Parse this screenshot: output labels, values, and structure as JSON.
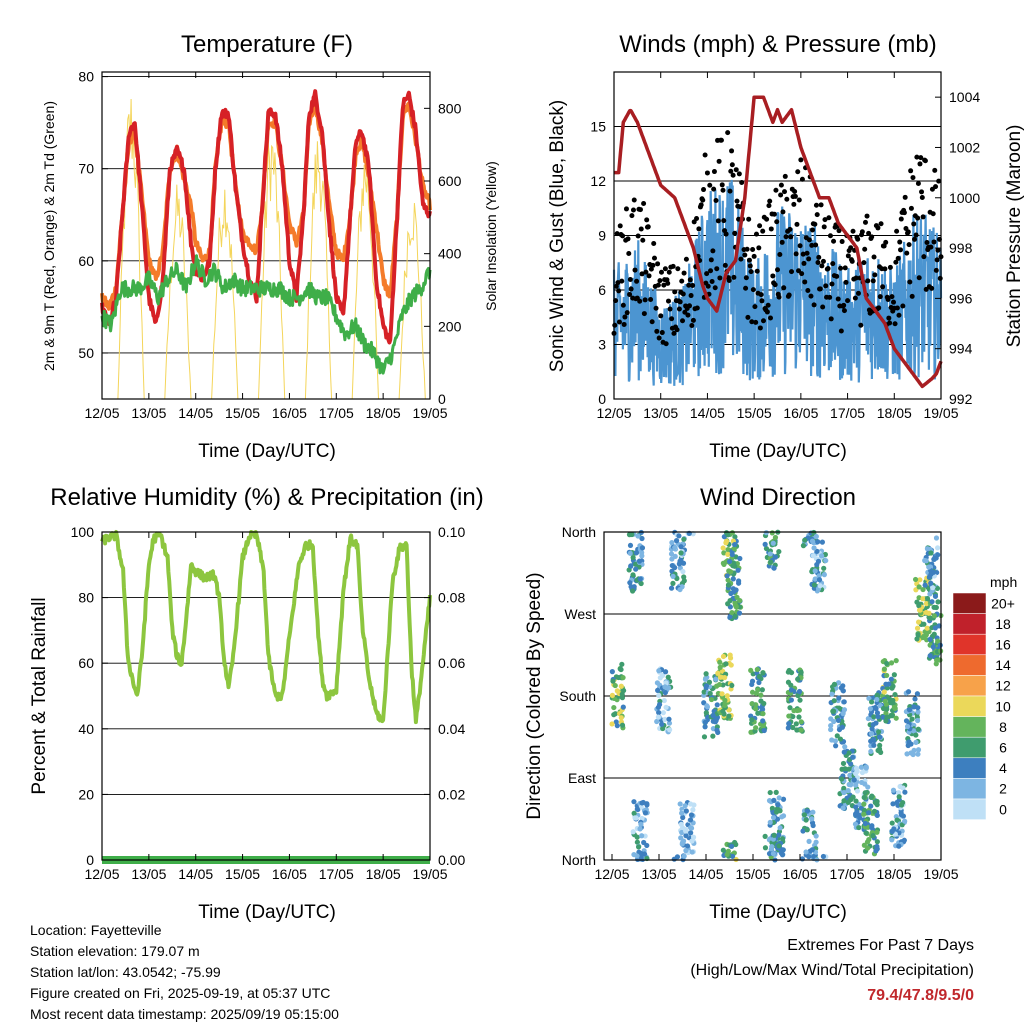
{
  "colors": {
    "red": "#d62126",
    "orange": "#f47b2a",
    "green": "#3fae49",
    "yellow": "#f4d55a",
    "blue": "#4c95d1",
    "black": "#000000",
    "maroon": "#a81e22",
    "rh_green": "#8dc63f"
  },
  "chart_data": [
    {
      "id": "temp",
      "type": "line",
      "title": "Temperature (F)",
      "xlabel": "Time (Day/UTC)",
      "ylabel": "2m & 9m T (Red, Orange) & 2m Td (Green)",
      "ylabel_right": "Solar Insolation (Yellow)",
      "x_ticks": [
        "12/05",
        "13/05",
        "14/05",
        "15/05",
        "16/05",
        "17/05",
        "18/05",
        "19/05"
      ],
      "ylim": [
        45,
        80.5
      ],
      "y_ticks": [
        50,
        60,
        70,
        80
      ],
      "ylim_right": [
        0,
        900
      ],
      "y_ticks_right": [
        0,
        200,
        400,
        600,
        800
      ],
      "grid": "horizontal",
      "series": [
        {
          "key": "t2m",
          "color": "red",
          "x": [
            0,
            0.15,
            0.3,
            0.45,
            0.58,
            0.7,
            0.85,
            1.0,
            1.15,
            1.3,
            1.45,
            1.6,
            1.75,
            1.9,
            2.0,
            2.15,
            2.3,
            2.42,
            2.55,
            2.7,
            2.85,
            3.0,
            3.15,
            3.3,
            3.42,
            3.55,
            3.7,
            3.85,
            4.0,
            4.15,
            4.3,
            4.42,
            4.55,
            4.7,
            4.85,
            5.0,
            5.15,
            5.3,
            5.42,
            5.55,
            5.7,
            5.85,
            6.0,
            6.15,
            6.3,
            6.42,
            6.55,
            6.7,
            6.85,
            7.0
          ],
          "values": [
            55,
            53,
            56,
            66,
            74,
            75,
            66,
            56,
            53,
            58,
            70,
            72,
            70,
            62,
            59,
            58,
            60,
            70,
            76,
            76,
            68,
            62,
            58,
            56,
            66,
            76,
            76,
            70,
            60,
            56,
            65,
            76,
            78,
            74,
            64,
            56,
            54,
            65,
            73,
            74,
            70,
            58,
            53,
            51,
            65,
            77,
            78,
            74,
            66,
            65
          ]
        },
        {
          "key": "t9m",
          "color": "orange",
          "x": [
            0,
            0.15,
            0.3,
            0.45,
            0.58,
            0.7,
            0.85,
            1.0,
            1.15,
            1.3,
            1.45,
            1.6,
            1.75,
            1.9,
            2.0,
            2.15,
            2.3,
            2.42,
            2.55,
            2.7,
            2.85,
            3.0,
            3.15,
            3.3,
            3.42,
            3.55,
            3.7,
            3.85,
            4.0,
            4.15,
            4.3,
            4.42,
            4.55,
            4.7,
            4.85,
            5.0,
            5.15,
            5.3,
            5.42,
            5.55,
            5.7,
            5.85,
            6.0,
            6.15,
            6.3,
            6.42,
            6.55,
            6.7,
            6.85,
            7.0
          ],
          "values": [
            56,
            55,
            57,
            66,
            73,
            74,
            67,
            60,
            58,
            61,
            70,
            72,
            69,
            66,
            62,
            60,
            61,
            70,
            75,
            75,
            68,
            63,
            62,
            61,
            66,
            75,
            75,
            70,
            64,
            62,
            65,
            75,
            77,
            73,
            66,
            61,
            60,
            65,
            72,
            73,
            69,
            64,
            58,
            56,
            65,
            76,
            77,
            73,
            68,
            66
          ]
        },
        {
          "key": "td",
          "color": "green",
          "x": [
            0,
            0.2,
            0.4,
            0.6,
            0.8,
            1.0,
            1.2,
            1.4,
            1.6,
            1.8,
            2.0,
            2.2,
            2.4,
            2.6,
            2.8,
            3.0,
            3.2,
            3.4,
            3.6,
            3.8,
            4.0,
            4.2,
            4.4,
            4.6,
            4.8,
            5.0,
            5.2,
            5.4,
            5.6,
            5.8,
            6.0,
            6.2,
            6.4,
            6.6,
            6.8,
            7.0
          ],
          "values": [
            54,
            53,
            57,
            57,
            57,
            58,
            56,
            58,
            59,
            57,
            60,
            58,
            59,
            57,
            58,
            57,
            57,
            57,
            57,
            57,
            56,
            56,
            57,
            56,
            56,
            54,
            52,
            53,
            51,
            50,
            48,
            50,
            54,
            56,
            57,
            59
          ]
        }
      ],
      "insolation": {
        "key": "solar",
        "color": "yellow",
        "day_peaks_x": [
          0.62,
          1.62,
          2.62,
          3.62,
          4.62,
          5.62,
          6.62
        ],
        "day_peaks": [
          880,
          600,
          640,
          780,
          760,
          720,
          600
        ]
      }
    },
    {
      "id": "wind",
      "type": "scatter",
      "title": "Winds (mph) & Pressure (mb)",
      "xlabel": "Time (Day/UTC)",
      "ylabel": "Sonic Wind & Gust (Blue, Black)",
      "ylabel_right": "Station Pressure (Maroon)",
      "x_ticks": [
        "12/05",
        "13/05",
        "14/05",
        "15/05",
        "16/05",
        "17/05",
        "18/05",
        "19/05"
      ],
      "ylim": [
        0,
        18
      ],
      "y_ticks": [
        0,
        3,
        6,
        9,
        12,
        15
      ],
      "ylim_right": [
        992,
        1005
      ],
      "y_ticks_right": [
        992,
        994,
        996,
        998,
        1000,
        1002,
        1004
      ],
      "grid": "horizontal",
      "wind_level_x": [
        0,
        0.5,
        1,
        1.5,
        2,
        2.5,
        3,
        3.5,
        4,
        4.5,
        5,
        5.5,
        6,
        6.5,
        7
      ],
      "wind_mean": [
        4,
        5,
        3,
        3.5,
        6.5,
        7,
        4,
        6,
        6,
        5,
        4,
        5,
        4,
        6,
        5
      ],
      "gust_mean": [
        6,
        8,
        5,
        5,
        9.5,
        10,
        6,
        8,
        9,
        7,
        6,
        7,
        6,
        10,
        8
      ],
      "pressure": {
        "x": [
          0,
          0.1,
          0.2,
          0.35,
          0.5,
          0.7,
          0.9,
          1.0,
          1.3,
          1.5,
          1.7,
          1.9,
          2.0,
          2.2,
          2.4,
          2.6,
          2.8,
          3.0,
          3.2,
          3.4,
          3.5,
          3.6,
          3.8,
          4.0,
          4.2,
          4.4,
          4.6,
          4.8,
          5.0,
          5.2,
          5.4,
          5.6,
          5.8,
          6.0,
          6.2,
          6.4,
          6.6,
          6.8,
          6.9,
          7.0
        ],
        "values": [
          1001,
          1001,
          1003,
          1003.5,
          1003,
          1002,
          1001,
          1000.5,
          1000,
          999,
          998,
          996.5,
          996,
          995.5,
          997,
          997.5,
          1000,
          1004,
          1004,
          1003,
          1003.5,
          1003,
          1003.5,
          1002,
          1001,
          1000,
          1000,
          999,
          998.5,
          998,
          996,
          995.5,
          995,
          994,
          993.5,
          993,
          992.5,
          992.8,
          993,
          993.5
        ]
      }
    },
    {
      "id": "rh",
      "type": "line",
      "title": "Relative Humidity (%) & Precipitation (in)",
      "xlabel": "Time (Day/UTC)",
      "ylabel": "Percent & Total Rainfall",
      "x_ticks": [
        "12/05",
        "13/05",
        "14/05",
        "15/05",
        "16/05",
        "17/05",
        "18/05",
        "19/05"
      ],
      "ylim": [
        0,
        100
      ],
      "y_ticks": [
        0,
        20,
        40,
        60,
        80,
        100
      ],
      "ylim_right": [
        0,
        0.1
      ],
      "y_ticks_right": [
        "0.00",
        "0.02",
        "0.04",
        "0.06",
        "0.08",
        "0.10"
      ],
      "grid": "horizontal",
      "series": [
        {
          "key": "rh",
          "color": "rh_green",
          "x": [
            0,
            0.1,
            0.3,
            0.45,
            0.55,
            0.65,
            0.75,
            0.85,
            1.0,
            1.1,
            1.25,
            1.4,
            1.5,
            1.6,
            1.7,
            1.8,
            1.9,
            2.0,
            2.2,
            2.4,
            2.5,
            2.6,
            2.7,
            2.8,
            3.0,
            3.15,
            3.3,
            3.45,
            3.55,
            3.7,
            3.85,
            4.0,
            4.2,
            4.35,
            4.5,
            4.6,
            4.7,
            4.8,
            5.0,
            5.15,
            5.3,
            5.45,
            5.55,
            5.7,
            5.85,
            6.0,
            6.2,
            6.35,
            6.5,
            6.6,
            6.7,
            6.8,
            7.0
          ],
          "values": [
            97,
            98,
            99,
            88,
            62,
            55,
            50,
            62,
            90,
            98,
            99,
            92,
            70,
            62,
            60,
            74,
            90,
            88,
            86,
            87,
            80,
            62,
            52,
            62,
            92,
            99,
            99,
            88,
            62,
            50,
            50,
            68,
            90,
            96,
            96,
            72,
            55,
            50,
            52,
            82,
            98,
            96,
            72,
            55,
            45,
            42,
            85,
            95,
            96,
            60,
            42,
            54,
            80
          ]
        },
        {
          "key": "precip",
          "color": "green",
          "x": [
            0,
            7
          ],
          "values": [
            0,
            0
          ]
        }
      ]
    },
    {
      "id": "dir",
      "type": "scatter",
      "title": "Wind Direction",
      "xlabel": "Time (Day/UTC)",
      "ylabel": "Direction (Colored By Speed)",
      "x_ticks": [
        "12/05",
        "13/05",
        "14/05",
        "15/05",
        "16/05",
        "17/05",
        "18/05",
        "19/05"
      ],
      "y_ticks": [
        "North",
        "East",
        "South",
        "West",
        "North"
      ],
      "ylim": [
        0,
        360
      ],
      "grid": "horizontal",
      "legend": {
        "title": "mph",
        "labels": [
          "20+",
          "18",
          "16",
          "14",
          "12",
          "10",
          "8",
          "6",
          "4",
          "2",
          "0"
        ],
        "colors": [
          "#8b1a1a",
          "#c0212b",
          "#e0342a",
          "#ee6a2e",
          "#f7a24a",
          "#ebd85a",
          "#64b45c",
          "#3f9c6e",
          "#3d7fbf",
          "#7db5e2",
          "#bfe0f6"
        ],
        "placement": "right"
      },
      "clusters": [
        {
          "x": 0.1,
          "dir": 180,
          "speed": 7
        },
        {
          "x": 0.5,
          "dir": 330,
          "speed": 4
        },
        {
          "x": 0.6,
          "dir": 30,
          "speed": 3
        },
        {
          "x": 1.4,
          "dir": 330,
          "speed": 3
        },
        {
          "x": 1.6,
          "dir": 30,
          "speed": 2
        },
        {
          "x": 1.1,
          "dir": 175,
          "speed": 3
        },
        {
          "x": 2.1,
          "dir": 170,
          "speed": 5
        },
        {
          "x": 2.4,
          "dir": 190,
          "speed": 8
        },
        {
          "x": 2.6,
          "dir": 300,
          "speed": 6
        },
        {
          "x": 2.5,
          "dir": 345,
          "speed": 7
        },
        {
          "x": 3.1,
          "dir": 175,
          "speed": 6
        },
        {
          "x": 3.4,
          "dir": 355,
          "speed": 5
        },
        {
          "x": 3.5,
          "dir": 40,
          "speed": 4
        },
        {
          "x": 3.9,
          "dir": 175,
          "speed": 6
        },
        {
          "x": 4.2,
          "dir": 20,
          "speed": 4
        },
        {
          "x": 4.4,
          "dir": 330,
          "speed": 3
        },
        {
          "x": 4.8,
          "dir": 160,
          "speed": 4
        },
        {
          "x": 5.0,
          "dir": 90,
          "speed": 4
        },
        {
          "x": 5.3,
          "dir": 70,
          "speed": 3
        },
        {
          "x": 5.5,
          "dir": 40,
          "speed": 6
        },
        {
          "x": 5.6,
          "dir": 150,
          "speed": 4
        },
        {
          "x": 5.9,
          "dir": 185,
          "speed": 7
        },
        {
          "x": 6.1,
          "dir": 50,
          "speed": 3
        },
        {
          "x": 6.4,
          "dir": 150,
          "speed": 4
        },
        {
          "x": 6.6,
          "dir": 275,
          "speed": 8
        },
        {
          "x": 6.9,
          "dir": 250,
          "speed": 6
        },
        {
          "x": 6.8,
          "dir": 320,
          "speed": 3
        }
      ]
    }
  ],
  "info": {
    "location": "Location: Fayetteville",
    "elevation": "Station elevation: 179.07 m",
    "latlon": "Station lat/lon: 43.0542; -75.99",
    "created": "Figure created on Fri, 2025-09-19, at 05:37 UTC",
    "recent": "Most recent data timestamp: 2025/09/19 05:15:00"
  },
  "extremes": {
    "title": "Extremes For Past 7 Days",
    "subtitle": "(High/Low/Max Wind/Total Precipitation)",
    "values": "79.4/47.8/9.5/0"
  }
}
